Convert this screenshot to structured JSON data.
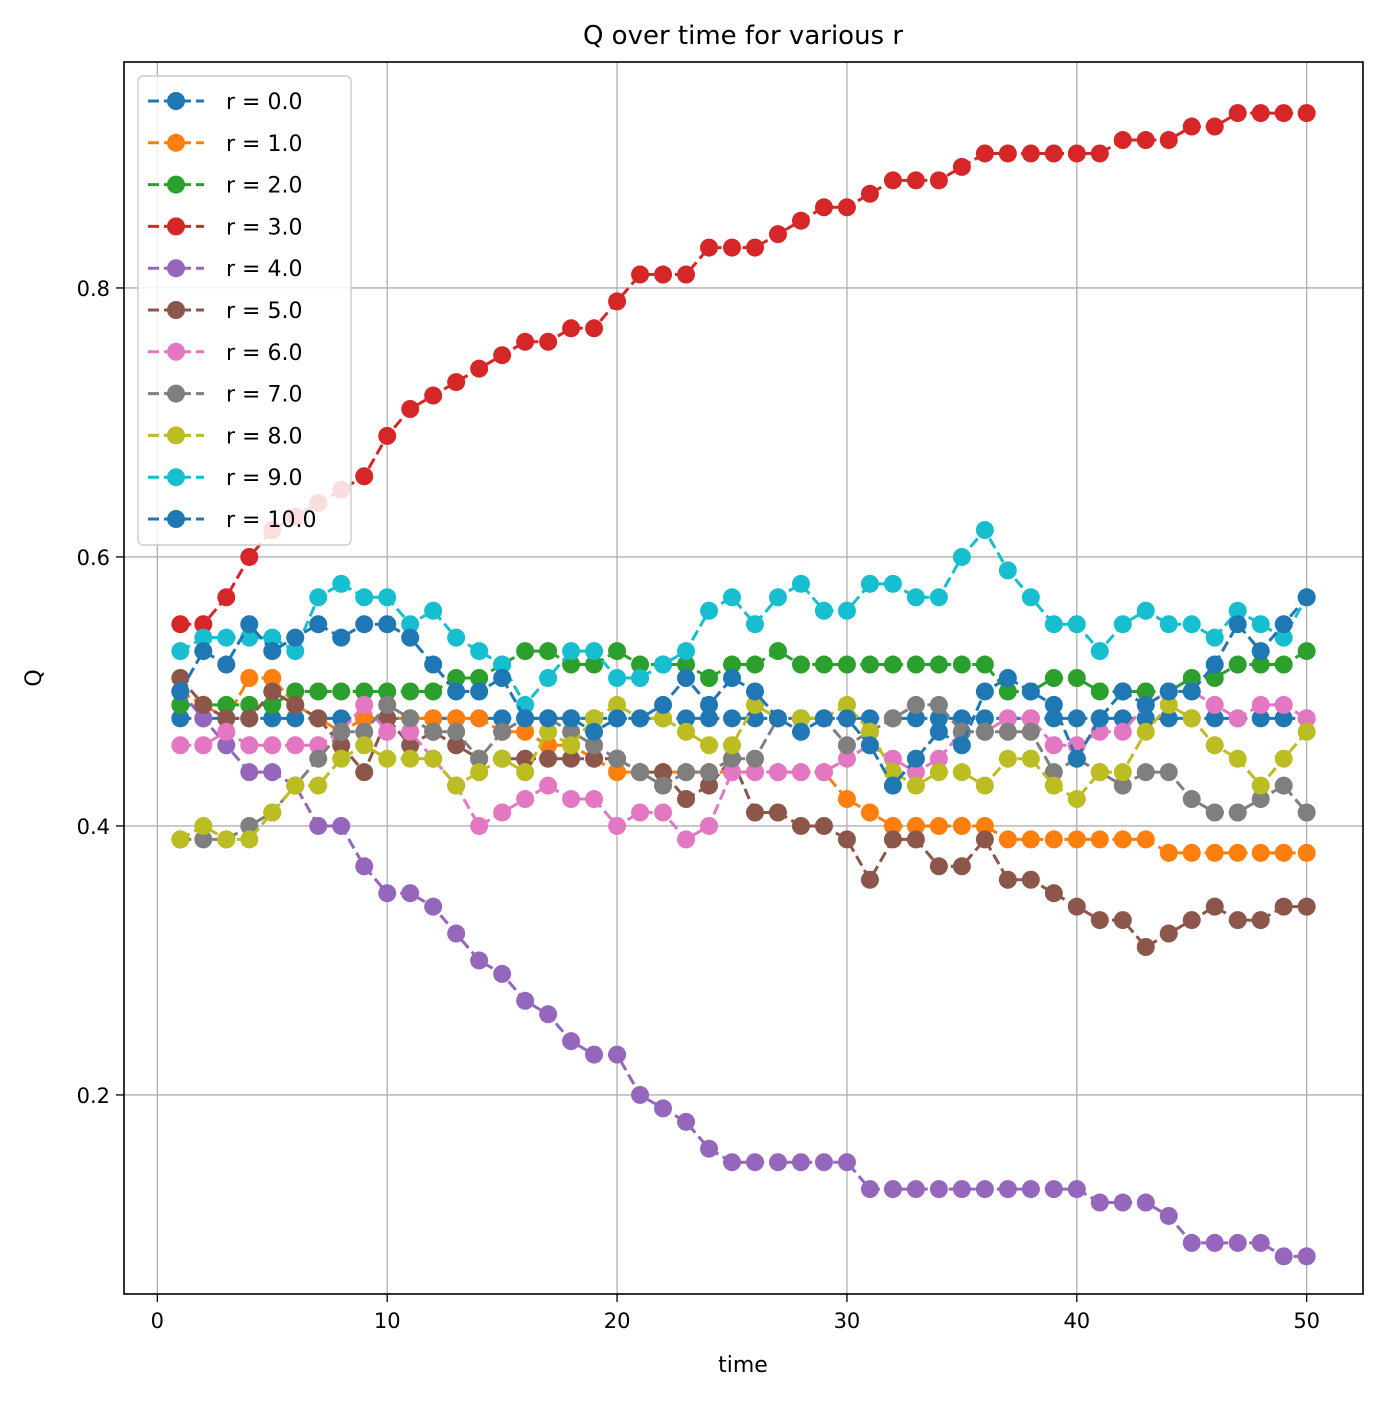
{
  "chart_data": {
    "type": "line",
    "title": "Q over time for various r",
    "xlabel": "time",
    "ylabel": "Q",
    "xlim": [
      -1.45,
      52.45
    ],
    "ylim": [
      0.052,
      0.968
    ],
    "xticks": [
      0,
      10,
      20,
      30,
      40,
      50
    ],
    "yticks": [
      0.2,
      0.4,
      0.6,
      0.8
    ],
    "xtick_labels": [
      "0",
      "10",
      "20",
      "30",
      "40",
      "50"
    ],
    "ytick_labels": [
      "0.2",
      "0.4",
      "0.6",
      "0.8"
    ],
    "grid": true,
    "legend_position": "upper-left",
    "line_style": "dashed",
    "marker": "circle",
    "x": [
      1,
      2,
      3,
      4,
      5,
      6,
      7,
      8,
      9,
      10,
      11,
      12,
      13,
      14,
      15,
      16,
      17,
      18,
      19,
      20,
      21,
      22,
      23,
      24,
      25,
      26,
      27,
      28,
      29,
      30,
      31,
      32,
      33,
      34,
      35,
      36,
      37,
      38,
      39,
      40,
      41,
      42,
      43,
      44,
      45,
      46,
      47,
      48,
      49,
      50
    ],
    "series": [
      {
        "name": "r = 0.0",
        "color": "#1f77b4",
        "values": [
          0.48,
          0.48,
          0.48,
          0.48,
          0.48,
          0.48,
          0.48,
          0.48,
          0.48,
          0.48,
          0.48,
          0.48,
          0.48,
          0.48,
          0.48,
          0.48,
          0.48,
          0.48,
          0.48,
          0.48,
          0.48,
          0.48,
          0.48,
          0.48,
          0.48,
          0.48,
          0.48,
          0.48,
          0.48,
          0.48,
          0.48,
          0.48,
          0.48,
          0.48,
          0.48,
          0.48,
          0.48,
          0.48,
          0.48,
          0.48,
          0.48,
          0.48,
          0.48,
          0.48,
          0.48,
          0.48,
          0.48,
          0.48,
          0.48,
          0.48
        ]
      },
      {
        "name": "r = 1.0",
        "color": "#ff7f0e",
        "values": [
          0.5,
          0.49,
          0.48,
          0.51,
          0.51,
          0.49,
          0.48,
          0.47,
          0.48,
          0.48,
          0.48,
          0.48,
          0.48,
          0.48,
          0.47,
          0.47,
          0.46,
          0.46,
          0.45,
          0.44,
          0.44,
          0.44,
          0.44,
          0.44,
          0.44,
          0.44,
          0.44,
          0.44,
          0.44,
          0.42,
          0.41,
          0.4,
          0.4,
          0.4,
          0.4,
          0.4,
          0.39,
          0.39,
          0.39,
          0.39,
          0.39,
          0.39,
          0.39,
          0.38,
          0.38,
          0.38,
          0.38,
          0.38,
          0.38,
          0.38
        ]
      },
      {
        "name": "r = 2.0",
        "color": "#2ca02c",
        "values": [
          0.49,
          0.49,
          0.49,
          0.49,
          0.49,
          0.5,
          0.5,
          0.5,
          0.5,
          0.5,
          0.5,
          0.5,
          0.51,
          0.51,
          0.52,
          0.53,
          0.53,
          0.52,
          0.52,
          0.53,
          0.52,
          0.52,
          0.52,
          0.51,
          0.52,
          0.52,
          0.53,
          0.52,
          0.52,
          0.52,
          0.52,
          0.52,
          0.52,
          0.52,
          0.52,
          0.52,
          0.5,
          0.5,
          0.51,
          0.51,
          0.5,
          0.5,
          0.5,
          0.5,
          0.51,
          0.51,
          0.52,
          0.52,
          0.52,
          0.53
        ]
      },
      {
        "name": "r = 3.0",
        "color": "#d62728",
        "values": [
          0.55,
          0.55,
          0.57,
          0.6,
          0.62,
          0.63,
          0.64,
          0.65,
          0.66,
          0.69,
          0.71,
          0.72,
          0.73,
          0.74,
          0.75,
          0.76,
          0.76,
          0.77,
          0.77,
          0.79,
          0.81,
          0.81,
          0.81,
          0.83,
          0.83,
          0.83,
          0.84,
          0.85,
          0.86,
          0.86,
          0.87,
          0.88,
          0.88,
          0.88,
          0.89,
          0.9,
          0.9,
          0.9,
          0.9,
          0.9,
          0.9,
          0.91,
          0.91,
          0.91,
          0.92,
          0.92,
          0.93,
          0.93,
          0.93,
          0.93
        ]
      },
      {
        "name": "r = 4.0",
        "color": "#9467bd",
        "values": [
          0.5,
          0.48,
          0.46,
          0.44,
          0.44,
          0.43,
          0.4,
          0.4,
          0.37,
          0.35,
          0.35,
          0.34,
          0.32,
          0.3,
          0.29,
          0.27,
          0.26,
          0.24,
          0.23,
          0.23,
          0.2,
          0.19,
          0.18,
          0.16,
          0.15,
          0.15,
          0.15,
          0.15,
          0.15,
          0.15,
          0.13,
          0.13,
          0.13,
          0.13,
          0.13,
          0.13,
          0.13,
          0.13,
          0.13,
          0.13,
          0.12,
          0.12,
          0.12,
          0.11,
          0.09,
          0.09,
          0.09,
          0.09,
          0.08,
          0.08
        ]
      },
      {
        "name": "r = 5.0",
        "color": "#8c564b",
        "values": [
          0.51,
          0.49,
          0.48,
          0.48,
          0.5,
          0.49,
          0.48,
          0.46,
          0.44,
          0.48,
          0.46,
          0.47,
          0.46,
          0.45,
          0.45,
          0.45,
          0.45,
          0.45,
          0.45,
          0.45,
          0.44,
          0.44,
          0.42,
          0.43,
          0.45,
          0.41,
          0.41,
          0.4,
          0.4,
          0.39,
          0.36,
          0.39,
          0.39,
          0.37,
          0.37,
          0.39,
          0.36,
          0.36,
          0.35,
          0.34,
          0.33,
          0.33,
          0.31,
          0.32,
          0.33,
          0.34,
          0.33,
          0.33,
          0.34,
          0.34
        ]
      },
      {
        "name": "r = 6.0",
        "color": "#e377c2",
        "values": [
          0.46,
          0.46,
          0.47,
          0.46,
          0.46,
          0.46,
          0.46,
          0.47,
          0.49,
          0.47,
          0.47,
          0.45,
          0.43,
          0.4,
          0.41,
          0.42,
          0.43,
          0.42,
          0.42,
          0.4,
          0.41,
          0.41,
          0.39,
          0.4,
          0.44,
          0.44,
          0.44,
          0.44,
          0.44,
          0.45,
          0.46,
          0.45,
          0.44,
          0.45,
          0.47,
          0.47,
          0.48,
          0.48,
          0.46,
          0.46,
          0.47,
          0.47,
          0.49,
          0.5,
          0.5,
          0.49,
          0.48,
          0.49,
          0.49,
          0.48
        ]
      },
      {
        "name": "r = 7.0",
        "color": "#7f7f7f",
        "values": [
          0.39,
          0.39,
          0.39,
          0.4,
          0.41,
          0.43,
          0.45,
          0.47,
          0.47,
          0.49,
          0.48,
          0.47,
          0.47,
          0.45,
          0.47,
          0.48,
          0.48,
          0.47,
          0.46,
          0.45,
          0.44,
          0.43,
          0.44,
          0.44,
          0.45,
          0.45,
          0.48,
          0.48,
          0.48,
          0.46,
          0.47,
          0.48,
          0.49,
          0.49,
          0.47,
          0.47,
          0.47,
          0.47,
          0.44,
          0.45,
          0.44,
          0.43,
          0.44,
          0.44,
          0.42,
          0.41,
          0.41,
          0.42,
          0.43,
          0.41
        ]
      },
      {
        "name": "r = 8.0",
        "color": "#bcbd22",
        "values": [
          0.39,
          0.4,
          0.39,
          0.39,
          0.41,
          0.43,
          0.43,
          0.45,
          0.46,
          0.45,
          0.45,
          0.45,
          0.43,
          0.44,
          0.45,
          0.44,
          0.47,
          0.46,
          0.48,
          0.49,
          0.48,
          0.48,
          0.47,
          0.46,
          0.46,
          0.49,
          0.48,
          0.48,
          0.48,
          0.49,
          0.47,
          0.44,
          0.43,
          0.44,
          0.44,
          0.43,
          0.45,
          0.45,
          0.43,
          0.42,
          0.44,
          0.44,
          0.47,
          0.49,
          0.48,
          0.46,
          0.45,
          0.43,
          0.45,
          0.47
        ]
      },
      {
        "name": "r = 9.0",
        "color": "#17becf",
        "values": [
          0.53,
          0.54,
          0.54,
          0.54,
          0.54,
          0.53,
          0.57,
          0.58,
          0.57,
          0.57,
          0.55,
          0.56,
          0.54,
          0.53,
          0.52,
          0.49,
          0.51,
          0.53,
          0.53,
          0.51,
          0.51,
          0.52,
          0.53,
          0.56,
          0.57,
          0.55,
          0.57,
          0.58,
          0.56,
          0.56,
          0.58,
          0.58,
          0.57,
          0.57,
          0.6,
          0.62,
          0.59,
          0.57,
          0.55,
          0.55,
          0.53,
          0.55,
          0.56,
          0.55,
          0.55,
          0.54,
          0.56,
          0.55,
          0.54,
          0.57
        ]
      },
      {
        "name": "r = 10.0",
        "color": "#1f77b4",
        "values": [
          0.5,
          0.53,
          0.52,
          0.55,
          0.53,
          0.54,
          0.55,
          0.54,
          0.55,
          0.55,
          0.54,
          0.52,
          0.5,
          0.5,
          0.51,
          0.48,
          0.48,
          0.48,
          0.47,
          0.48,
          0.48,
          0.49,
          0.51,
          0.49,
          0.51,
          0.5,
          0.48,
          0.47,
          0.48,
          0.48,
          0.46,
          0.43,
          0.45,
          0.47,
          0.46,
          0.5,
          0.51,
          0.5,
          0.49,
          0.45,
          0.48,
          0.5,
          0.49,
          0.5,
          0.5,
          0.52,
          0.55,
          0.53,
          0.55,
          0.57
        ]
      }
    ]
  }
}
